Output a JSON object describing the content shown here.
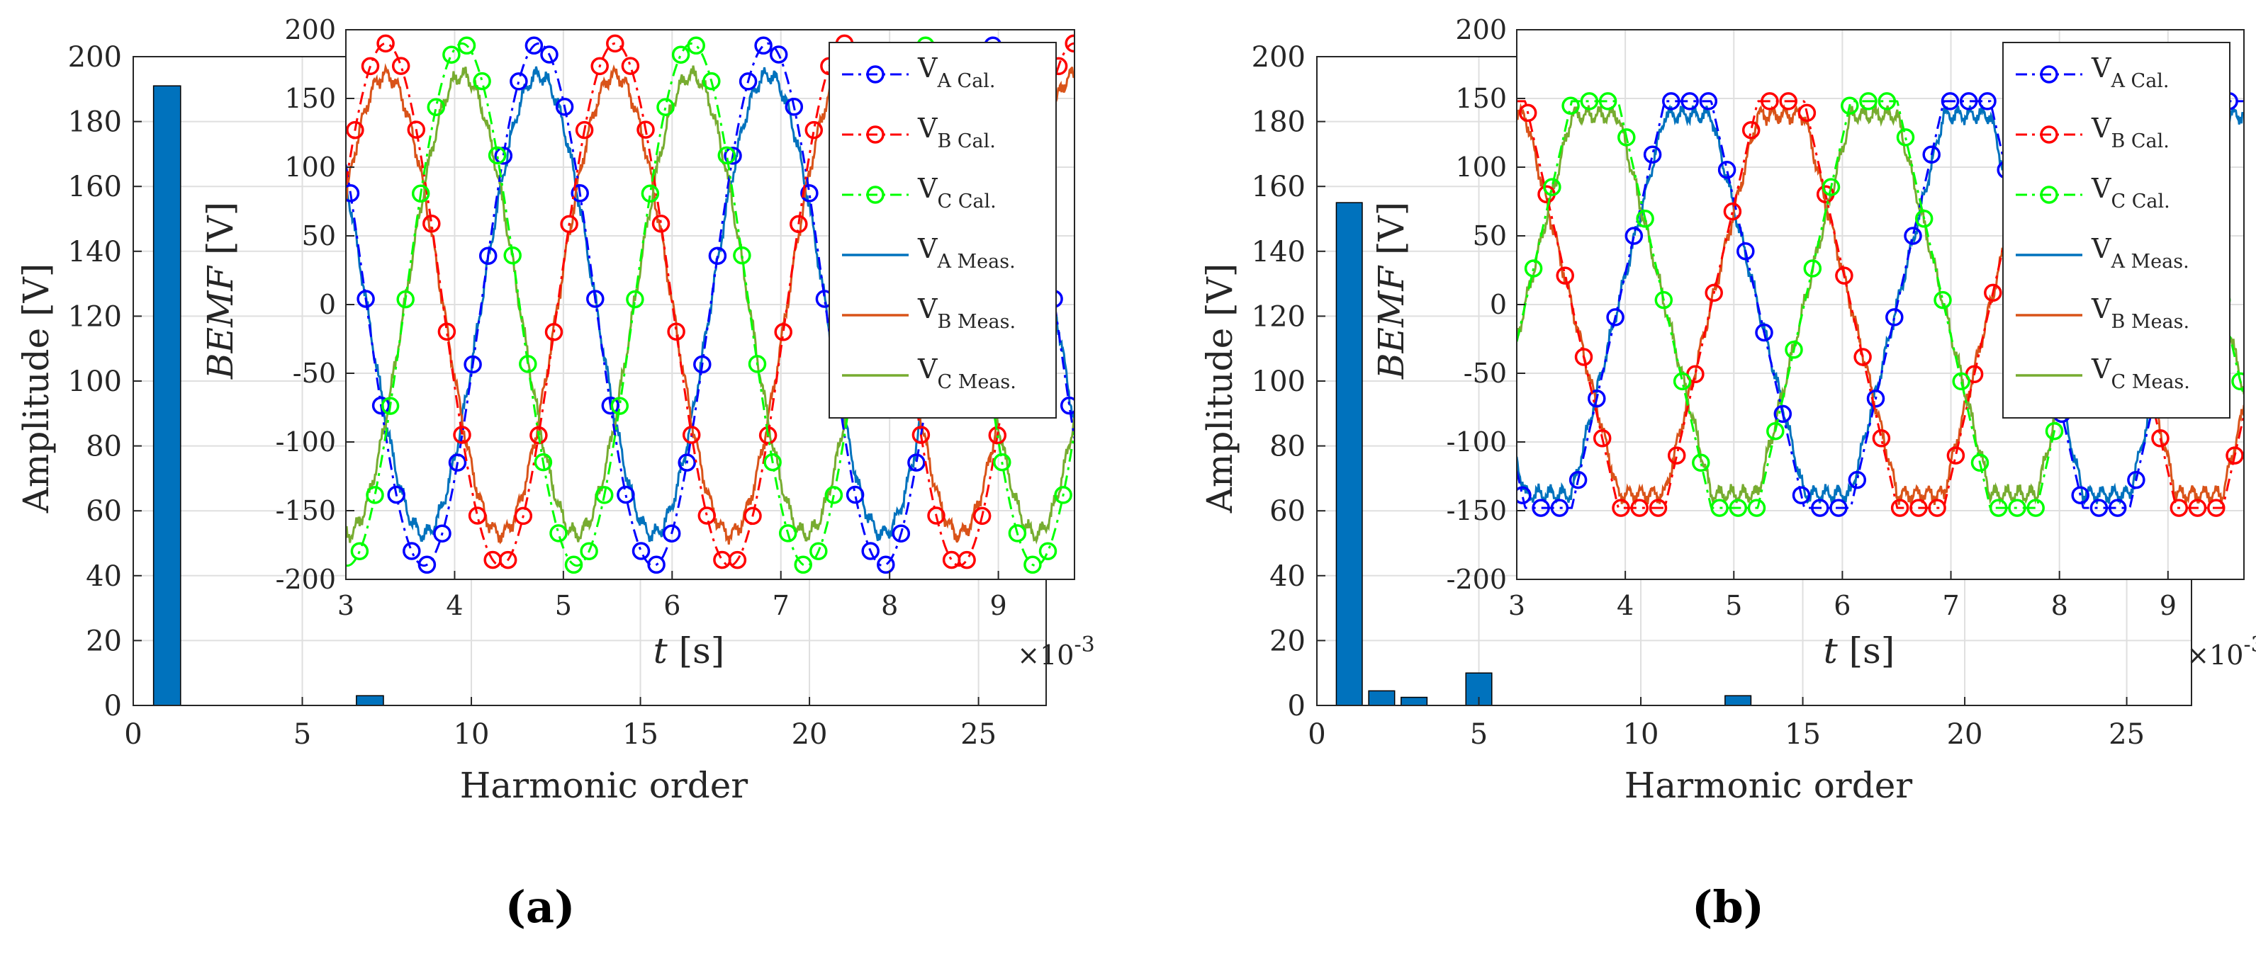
{
  "figure": {
    "panels": [
      "(a)",
      "(b)"
    ]
  },
  "colors": {
    "bar": "#0072BD",
    "VA_cal": "#0000FF",
    "VB_cal": "#FF0000",
    "VC_cal": "#00FF00",
    "VA_meas": "#0072BD",
    "VB_meas": "#D95319",
    "VC_meas": "#77AC30"
  },
  "chart_data": [
    {
      "type": "bar",
      "panel": "(a)",
      "xlabel": "Harmonic order",
      "ylabel": "Amplitude [V]",
      "xlim": [
        0,
        27
      ],
      "ylim": [
        0,
        200
      ],
      "xticks": [
        0,
        5,
        10,
        15,
        20,
        25
      ],
      "yticks": [
        0,
        20,
        40,
        60,
        80,
        100,
        120,
        140,
        160,
        180,
        200
      ],
      "categories": [
        1,
        7
      ],
      "values": [
        191,
        3
      ],
      "inset": {
        "type": "line",
        "xlabel_var": "t",
        "xlabel_unit": " [s]",
        "ylabel_var": "BEMF",
        "ylabel_unit": " [V]",
        "xlim": [
          0.003,
          0.0097
        ],
        "ylim": [
          -200,
          200
        ],
        "xticks": [
          3,
          4,
          5,
          6,
          7,
          8,
          9
        ],
        "yticks": [
          -200,
          -150,
          -100,
          -50,
          0,
          50,
          100,
          150,
          200
        ],
        "x_exponent_label": "×10",
        "x_exponent_power": "-3",
        "waveform": "sinusoidal",
        "frequency_hz": 474,
        "calc_amplitude": 190,
        "meas_amplitude": 167,
        "phase_A_zero_rise_t": 0.004245,
        "series": [
          {
            "name": "V_A Cal.",
            "base": "V",
            "sub": "A Cal.",
            "phase_deg": 0,
            "style": "dash-dot-circle"
          },
          {
            "name": "V_B Cal.",
            "base": "V",
            "sub": "B Cal.",
            "phase_deg": -120,
            "style": "dash-dot-circle"
          },
          {
            "name": "V_C Cal.",
            "base": "V",
            "sub": "C Cal.",
            "phase_deg": 120,
            "style": "dash-dot-circle"
          },
          {
            "name": "V_A Meas.",
            "base": "V",
            "sub": "A Meas.",
            "phase_deg": 0,
            "style": "solid"
          },
          {
            "name": "V_B Meas.",
            "base": "V",
            "sub": "B Meas.",
            "phase_deg": -120,
            "style": "solid"
          },
          {
            "name": "V_C Meas.",
            "base": "V",
            "sub": "C Meas.",
            "phase_deg": 120,
            "style": "solid"
          }
        ]
      }
    },
    {
      "type": "bar",
      "panel": "(b)",
      "xlabel": "Harmonic order",
      "ylabel": "Amplitude [V]",
      "xlim": [
        0,
        27
      ],
      "ylim": [
        0,
        200
      ],
      "xticks": [
        0,
        5,
        10,
        15,
        20,
        25
      ],
      "yticks": [
        0,
        20,
        40,
        60,
        80,
        100,
        120,
        140,
        160,
        180,
        200
      ],
      "categories": [
        1,
        2,
        3,
        5,
        13
      ],
      "values": [
        155,
        4.5,
        2.5,
        10,
        3
      ],
      "inset": {
        "type": "line",
        "xlabel_var": "t",
        "xlabel_unit": " [s]",
        "ylabel_var": "BEMF",
        "ylabel_unit": " [V]",
        "xlim": [
          0.003,
          0.0097
        ],
        "ylim": [
          -200,
          200
        ],
        "xticks": [
          3,
          4,
          5,
          6,
          7,
          8,
          9
        ],
        "yticks": [
          -200,
          -150,
          -100,
          -50,
          0,
          50,
          100,
          150,
          200
        ],
        "x_exponent_label": "×10",
        "x_exponent_power": "-3",
        "waveform": "trapezoidal",
        "frequency_hz": 389,
        "calc_amplitude": 148,
        "meas_amplitude": 138,
        "phase_A_zero_rise_t": 0.003935,
        "series": [
          {
            "name": "V_A Cal.",
            "base": "V",
            "sub": "A Cal.",
            "phase_deg": 0,
            "style": "dash-dot-circle"
          },
          {
            "name": "V_B Cal.",
            "base": "V",
            "sub": "B Cal.",
            "phase_deg": -120,
            "style": "dash-dot-circle"
          },
          {
            "name": "V_C Cal.",
            "base": "V",
            "sub": "C Cal.",
            "phase_deg": 120,
            "style": "dash-dot-circle"
          },
          {
            "name": "V_A Meas.",
            "base": "V",
            "sub": "A Meas.",
            "phase_deg": 0,
            "style": "solid"
          },
          {
            "name": "V_B Meas.",
            "base": "V",
            "sub": "B Meas.",
            "phase_deg": -120,
            "style": "solid"
          },
          {
            "name": "V_C Meas.",
            "base": "V",
            "sub": "C Meas.",
            "phase_deg": 120,
            "style": "solid"
          }
        ]
      }
    }
  ]
}
